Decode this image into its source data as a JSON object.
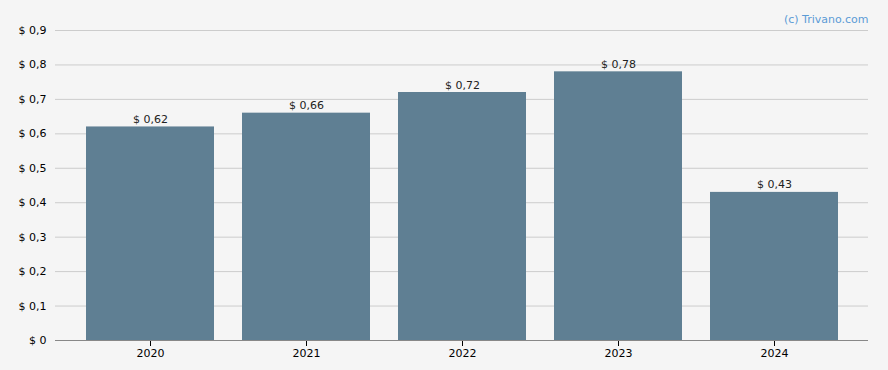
{
  "chart_data": {
    "type": "bar",
    "categories": [
      "2020",
      "2021",
      "2022",
      "2023",
      "2024"
    ],
    "values": [
      0.62,
      0.66,
      0.72,
      0.78,
      0.43
    ],
    "value_labels": [
      "$ 0,62",
      "$ 0,66",
      "$ 0,72",
      "$ 0,78",
      "$ 0,43"
    ],
    "data_labels": true,
    "color": "#5f7f93",
    "ylim": [
      0,
      0.9
    ],
    "yticks": [
      {
        "value": 0.0,
        "label": "$ 0"
      },
      {
        "value": 0.1,
        "label": "$ 0,1"
      },
      {
        "value": 0.2,
        "label": "$ 0,2"
      },
      {
        "value": 0.3,
        "label": "$ 0,3"
      },
      {
        "value": 0.4,
        "label": "$ 0,4"
      },
      {
        "value": 0.5,
        "label": "$ 0,5"
      },
      {
        "value": 0.6,
        "label": "$ 0,6"
      },
      {
        "value": 0.7,
        "label": "$ 0,7"
      },
      {
        "value": 0.8,
        "label": "$ 0,8"
      },
      {
        "value": 0.9,
        "label": "$ 0,9"
      }
    ],
    "grid": true,
    "annotations": [
      "(c) Trivano.com"
    ]
  }
}
